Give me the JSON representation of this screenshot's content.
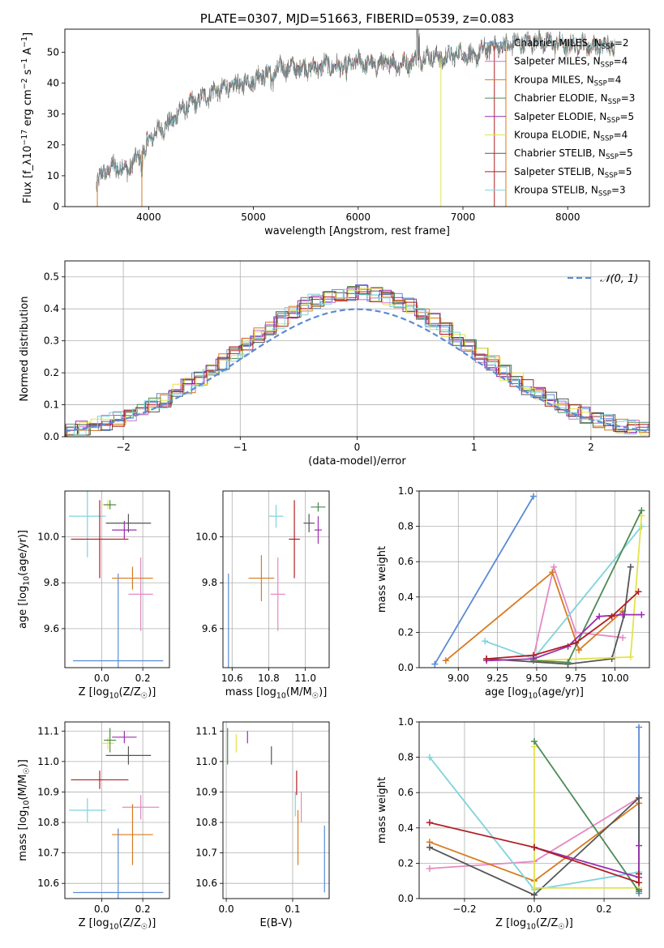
{
  "chart_data": [
    {
      "id": "spectrum",
      "type": "line",
      "title": "PLATE=0307, MJD=51663, FIBERID=0539, z=0.083",
      "xlabel": "wavelength [Angstrom, rest frame]",
      "ylabel": "Flux [f_λ 10^−17 erg cm^−2 s^−1 A^−1]",
      "xlim": [
        3200,
        8780
      ],
      "ylim": [
        0,
        57.5
      ],
      "xticks": [
        4000,
        5000,
        6000,
        7000,
        8000
      ],
      "yticks": [
        0,
        10,
        20,
        30,
        40,
        50
      ],
      "legend_position": "right",
      "legend": [
        {
          "label": "Chabrier MILES, N_SSP=2",
          "color": "#5b8bd6"
        },
        {
          "label": "Salpeter MILES, N_SSP=4",
          "color": "#c472c8"
        },
        {
          "label": "Kroupa MILES, N_SSP=4",
          "color": "#d77a1f"
        },
        {
          "label": "Chabrier ELODIE, N_SSP=3",
          "color": "#4d8a55"
        },
        {
          "label": "Salpeter ELODIE, N_SSP=5",
          "color": "#9b2fae"
        },
        {
          "label": "Kroupa ELODIE, N_SSP=4",
          "color": "#e3e24d"
        },
        {
          "label": "Chabrier STELIB, N_SSP=5",
          "color": "#555555"
        },
        {
          "label": "Salpeter STELIB, N_SSP=5",
          "color": "#b01e23"
        },
        {
          "label": "Kroupa STELIB, N_SSP=3",
          "color": "#7fd3dc"
        }
      ],
      "continuum_points": [
        [
          3500,
          8
        ],
        [
          3600,
          12
        ],
        [
          3700,
          13
        ],
        [
          3800,
          12
        ],
        [
          3900,
          16
        ],
        [
          4000,
          22
        ],
        [
          4100,
          25
        ],
        [
          4200,
          27
        ],
        [
          4300,
          31
        ],
        [
          4400,
          33
        ],
        [
          4500,
          35
        ],
        [
          4600,
          37
        ],
        [
          4700,
          38
        ],
        [
          4800,
          39
        ],
        [
          4900,
          40
        ],
        [
          5000,
          41
        ],
        [
          5100,
          43
        ],
        [
          5200,
          44
        ],
        [
          5300,
          45
        ],
        [
          5400,
          45
        ],
        [
          5500,
          45
        ],
        [
          5600,
          45
        ],
        [
          5700,
          46
        ],
        [
          5800,
          45
        ],
        [
          5900,
          46
        ],
        [
          6000,
          47
        ],
        [
          6100,
          46
        ],
        [
          6200,
          46
        ],
        [
          6300,
          47
        ],
        [
          6400,
          46
        ],
        [
          6500,
          47
        ],
        [
          6600,
          48
        ],
        [
          6700,
          49
        ],
        [
          6800,
          48
        ],
        [
          6900,
          49
        ],
        [
          7000,
          50
        ],
        [
          7100,
          48
        ],
        [
          7200,
          51
        ],
        [
          7300,
          52
        ],
        [
          7400,
          52
        ],
        [
          7500,
          53
        ],
        [
          7600,
          53
        ],
        [
          7700,
          54
        ],
        [
          7800,
          53
        ],
        [
          7900,
          53
        ],
        [
          8000,
          52
        ],
        [
          8100,
          53
        ],
        [
          8200,
          52
        ],
        [
          8300,
          52
        ],
        [
          8400,
          52
        ]
      ]
    },
    {
      "id": "residuals",
      "type": "line",
      "xlabel": "(data-model)/error",
      "ylabel": "Normed distribution",
      "xlim": [
        -2.5,
        2.5
      ],
      "ylim": [
        0,
        0.55
      ],
      "xticks": [
        -2,
        -1,
        0,
        1,
        2
      ],
      "yticks": [
        0.0,
        0.1,
        0.2,
        0.3,
        0.4,
        0.5
      ],
      "legend_position": "top-right",
      "gaussian_label": "𝒩(0, 1)",
      "gaussian_color": "#5b8bd6"
    },
    {
      "id": "age-vs-Z",
      "type": "scatter",
      "xlabel": "Z [log10(Z/Z☉)]",
      "ylabel": "age [log10(age/yr)]",
      "xlim": [
        -0.18,
        0.33
      ],
      "ylim": [
        9.43,
        10.2
      ],
      "xticks": [
        0.0,
        0.2
      ],
      "yticks": [
        9.6,
        9.8,
        10.0
      ],
      "points": [
        {
          "x": 0.08,
          "xerr": 0.22,
          "y": 9.46,
          "yerr": 0.38,
          "color": "#5b8bd6"
        },
        {
          "x": 0.19,
          "xerr": 0.06,
          "y": 9.75,
          "yerr": 0.16,
          "color": "#e589c3"
        },
        {
          "x": 0.15,
          "xerr": 0.1,
          "y": 9.82,
          "yerr": 0.05,
          "color": "#d77a1f"
        },
        {
          "x": -0.07,
          "xerr": 0.09,
          "y": 10.09,
          "yerr": 0.18,
          "color": "#7fd3dc"
        },
        {
          "x": 0.13,
          "xerr": 0.11,
          "y": 10.06,
          "yerr": 0.04,
          "color": "#555555"
        },
        {
          "x": 0.03,
          "xerr": 0.03,
          "y": 10.14,
          "yerr": 0.02,
          "color": "#e3e24d"
        },
        {
          "x": 0.04,
          "xerr": 0.03,
          "y": 10.14,
          "yerr": 0.02,
          "color": "#4d8a55"
        },
        {
          "x": 0.11,
          "xerr": 0.06,
          "y": 10.03,
          "yerr": 0.04,
          "color": "#9b2fae"
        },
        {
          "x": -0.01,
          "xerr": 0.14,
          "y": 9.99,
          "yerr": 0.17,
          "color": "#b01e23"
        }
      ]
    },
    {
      "id": "age-vs-mass",
      "type": "scatter",
      "xlabel": "mass [log10(M/M☉)]",
      "ylabel": "",
      "xlim": [
        10.55,
        11.13
      ],
      "ylim": [
        9.43,
        10.2
      ],
      "xticks": [
        10.6,
        10.8,
        11.0
      ],
      "yticks": [
        9.6,
        9.8,
        10.0
      ],
      "points": [
        {
          "x": 10.58,
          "xerr": 0.0,
          "y": 9.46,
          "yerr": 0.38,
          "color": "#5b8bd6"
        },
        {
          "x": 10.85,
          "xerr": 0.04,
          "y": 9.75,
          "yerr": 0.16,
          "color": "#e589c3"
        },
        {
          "x": 10.76,
          "xerr": 0.07,
          "y": 9.82,
          "yerr": 0.1,
          "color": "#d77a1f"
        },
        {
          "x": 10.84,
          "xerr": 0.04,
          "y": 10.09,
          "yerr": 0.05,
          "color": "#7fd3dc"
        },
        {
          "x": 11.02,
          "xerr": 0.03,
          "y": 10.06,
          "yerr": 0.04,
          "color": "#555555"
        },
        {
          "x": 11.07,
          "xerr": 0.01,
          "y": 10.13,
          "yerr": 0.02,
          "color": "#e3e24d"
        },
        {
          "x": 11.07,
          "xerr": 0.04,
          "y": 10.13,
          "yerr": 0.02,
          "color": "#4d8a55"
        },
        {
          "x": 11.07,
          "xerr": 0.02,
          "y": 10.03,
          "yerr": 0.06,
          "color": "#9b2fae"
        },
        {
          "x": 10.94,
          "xerr": 0.03,
          "y": 9.99,
          "yerr": 0.17,
          "color": "#b01e23"
        }
      ]
    },
    {
      "id": "mass-weight-vs-age",
      "type": "line",
      "xlabel": "age [log10(age/yr)]",
      "ylabel": "mass weight",
      "xlim": [
        8.75,
        10.22
      ],
      "ylim": [
        0,
        1.0
      ],
      "xticks": [
        9.0,
        9.25,
        9.5,
        9.75,
        10.0
      ],
      "yticks": [
        0.0,
        0.2,
        0.4,
        0.6,
        0.8,
        1.0
      ],
      "series": [
        {
          "color": "#5b8bd6",
          "x": [
            8.85,
            9.48
          ],
          "y": [
            0.02,
            0.97
          ]
        },
        {
          "color": "#e589c3",
          "x": [
            9.48,
            9.61,
            9.75,
            10.05
          ],
          "y": [
            0.06,
            0.57,
            0.2,
            0.17
          ]
        },
        {
          "color": "#d77a1f",
          "x": [
            8.92,
            9.6,
            9.77,
            10.05
          ],
          "y": [
            0.04,
            0.54,
            0.1,
            0.32
          ]
        },
        {
          "color": "#7fd3dc",
          "x": [
            9.17,
            9.48,
            10.17
          ],
          "y": [
            0.15,
            0.05,
            0.8
          ]
        },
        {
          "color": "#555555",
          "x": [
            9.18,
            9.7,
            9.98,
            10.06,
            10.1
          ],
          "y": [
            0.05,
            0.02,
            0.05,
            0.3,
            0.57
          ]
        },
        {
          "color": "#e3e24d",
          "x": [
            9.48,
            10.1,
            10.17
          ],
          "y": [
            0.04,
            0.06,
            0.86
          ]
        },
        {
          "color": "#4d8a55",
          "x": [
            9.48,
            9.7,
            10.17
          ],
          "y": [
            0.04,
            0.03,
            0.89
          ]
        },
        {
          "color": "#9b2fae",
          "x": [
            9.18,
            9.48,
            9.7,
            9.9,
            10.05,
            10.17
          ],
          "y": [
            0.04,
            0.05,
            0.12,
            0.29,
            0.3,
            0.3
          ]
        },
        {
          "color": "#b01e23",
          "x": [
            9.18,
            9.48,
            9.75,
            9.98,
            10.15
          ],
          "y": [
            0.05,
            0.07,
            0.14,
            0.29,
            0.43
          ]
        }
      ]
    },
    {
      "id": "mass-vs-Z",
      "type": "scatter",
      "xlabel": "Z [log10(Z/Z☉)]",
      "ylabel": "mass [log10(M/M☉)]",
      "xlim": [
        -0.18,
        0.33
      ],
      "ylim": [
        10.55,
        11.13
      ],
      "xticks": [
        0.0,
        0.2
      ],
      "yticks": [
        10.6,
        10.7,
        10.8,
        10.9,
        11.0,
        11.1
      ],
      "points": [
        {
          "x": 0.08,
          "xerr": 0.22,
          "y": 10.57,
          "yerr": 0.21,
          "color": "#5b8bd6"
        },
        {
          "x": 0.19,
          "xerr": 0.09,
          "y": 10.85,
          "yerr": 0.04,
          "color": "#e589c3"
        },
        {
          "x": 0.15,
          "xerr": 0.1,
          "y": 10.76,
          "yerr": 0.1,
          "color": "#d77a1f"
        },
        {
          "x": -0.07,
          "xerr": 0.09,
          "y": 10.84,
          "yerr": 0.04,
          "color": "#7fd3dc"
        },
        {
          "x": 0.13,
          "xerr": 0.11,
          "y": 11.02,
          "yerr": 0.03,
          "color": "#555555"
        },
        {
          "x": 0.03,
          "xerr": 0.03,
          "y": 11.06,
          "yerr": 0.02,
          "color": "#e3e24d"
        },
        {
          "x": 0.04,
          "xerr": 0.03,
          "y": 11.07,
          "yerr": 0.04,
          "color": "#4d8a55"
        },
        {
          "x": 0.11,
          "xerr": 0.06,
          "y": 11.08,
          "yerr": 0.02,
          "color": "#9b2fae"
        },
        {
          "x": -0.01,
          "xerr": 0.14,
          "y": 10.94,
          "yerr": 0.03,
          "color": "#b01e23"
        }
      ]
    },
    {
      "id": "mass-vs-EBV",
      "type": "scatter",
      "xlabel": "E(B-V)",
      "ylabel": "",
      "xlim": [
        -0.005,
        0.155
      ],
      "ylim": [
        10.55,
        11.13
      ],
      "xticks": [
        0.0,
        0.1
      ],
      "yticks": [
        10.6,
        10.7,
        10.8,
        10.9,
        11.0,
        11.1
      ],
      "points": [
        {
          "x": 0.148,
          "y": 10.68,
          "yerr": 0.11,
          "color": "#5b8bd6"
        },
        {
          "x": 0.113,
          "y": 10.85,
          "yerr": 0.05,
          "color": "#e589c3"
        },
        {
          "x": 0.108,
          "y": 10.75,
          "yerr": 0.09,
          "color": "#d77a1f"
        },
        {
          "x": 0.104,
          "y": 10.86,
          "yerr": 0.04,
          "color": "#7fd3dc"
        },
        {
          "x": 0.068,
          "y": 11.02,
          "yerr": 0.03,
          "color": "#555555"
        },
        {
          "x": 0.015,
          "y": 11.06,
          "yerr": 0.03,
          "color": "#e3e24d"
        },
        {
          "x": 0.002,
          "y": 11.05,
          "yerr": 0.06,
          "color": "#4d8a55"
        },
        {
          "x": 0.032,
          "y": 11.08,
          "yerr": 0.02,
          "color": "#9b2fae"
        },
        {
          "x": 0.106,
          "y": 10.93,
          "yerr": 0.04,
          "color": "#b01e23"
        }
      ]
    },
    {
      "id": "mass-weight-vs-Z",
      "type": "line",
      "xlabel": "Z [log10(Z/Z☉)]",
      "ylabel": "mass weight",
      "xlim": [
        -0.33,
        0.33
      ],
      "ylim": [
        0,
        1.0
      ],
      "xticks": [
        -0.2,
        0.0,
        0.2
      ],
      "yticks": [
        0.0,
        0.2,
        0.4,
        0.6,
        0.8,
        1.0
      ],
      "series": [
        {
          "color": "#5b8bd6",
          "x": [
            0.3,
            0.3
          ],
          "y": [
            0.03,
            0.97
          ]
        },
        {
          "color": "#e589c3",
          "x": [
            -0.3,
            0.0,
            0.3
          ],
          "y": [
            0.17,
            0.21,
            0.57
          ]
        },
        {
          "color": "#d77a1f",
          "x": [
            -0.3,
            0.0,
            0.3
          ],
          "y": [
            0.32,
            0.1,
            0.54
          ]
        },
        {
          "color": "#7fd3dc",
          "x": [
            -0.3,
            0.0,
            0.3
          ],
          "y": [
            0.8,
            0.05,
            0.15
          ]
        },
        {
          "color": "#555555",
          "x": [
            -0.3,
            0.0,
            0.3,
            0.3
          ],
          "y": [
            0.29,
            0.02,
            0.57,
            0.05
          ]
        },
        {
          "color": "#e3e24d",
          "x": [
            0.0,
            0.0,
            0.3
          ],
          "y": [
            0.86,
            0.06,
            0.06
          ]
        },
        {
          "color": "#4d8a55",
          "x": [
            0.0,
            0.3
          ],
          "y": [
            0.89,
            0.04
          ]
        },
        {
          "color": "#9b2fae",
          "x": [
            0.0,
            0.3,
            0.3
          ],
          "y": [
            0.29,
            0.12,
            0.3
          ]
        },
        {
          "color": "#b01e23",
          "x": [
            -0.3,
            0.0,
            0.3,
            0.3
          ],
          "y": [
            0.43,
            0.29,
            0.09,
            0.14
          ]
        }
      ]
    }
  ]
}
